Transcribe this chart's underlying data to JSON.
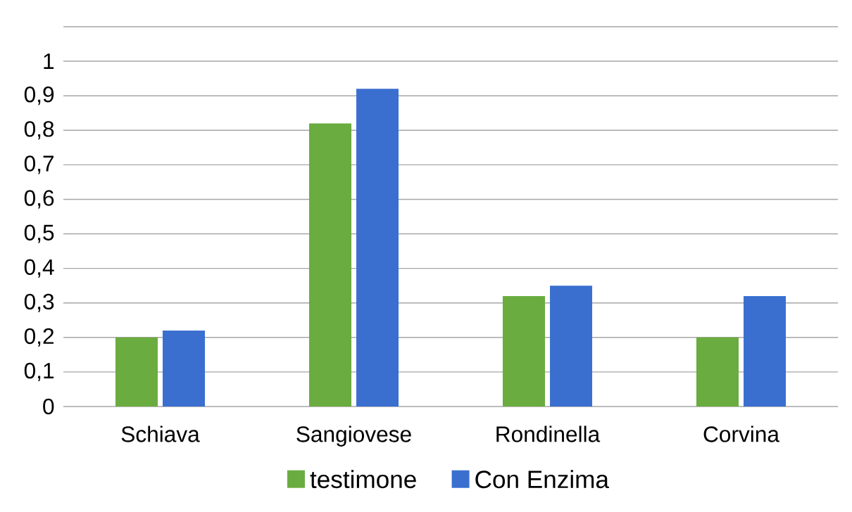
{
  "chart_data": {
    "type": "bar",
    "categories": [
      "Schiava",
      "Sangiovese",
      "Rondinella",
      "Corvina"
    ],
    "series": [
      {
        "name": "testimone",
        "color": "#6aac3f",
        "values": [
          0.2,
          0.82,
          0.32,
          0.2
        ]
      },
      {
        "name": "Con Enzima",
        "color": "#3a6fd0",
        "values": [
          0.22,
          0.92,
          0.35,
          0.32
        ]
      }
    ],
    "ylim": [
      0,
      1.1
    ],
    "yticks": [
      0,
      {
        "value": 0.1,
        "label": "0,1"
      },
      {
        "value": 0.2,
        "label": "0,2"
      },
      {
        "value": 0.3,
        "label": "0,3"
      },
      {
        "value": 0.4,
        "label": "0,4"
      },
      {
        "value": 0.5,
        "label": "0,5"
      },
      {
        "value": 0.6,
        "label": "0,6"
      },
      {
        "value": 0.7,
        "label": "0,7"
      },
      {
        "value": 0.8,
        "label": "0,8"
      },
      {
        "value": 0.9,
        "label": "0,9"
      },
      1,
      {
        "value": 1.1,
        "label": null
      }
    ],
    "grid": "y",
    "legend": "bottom"
  }
}
